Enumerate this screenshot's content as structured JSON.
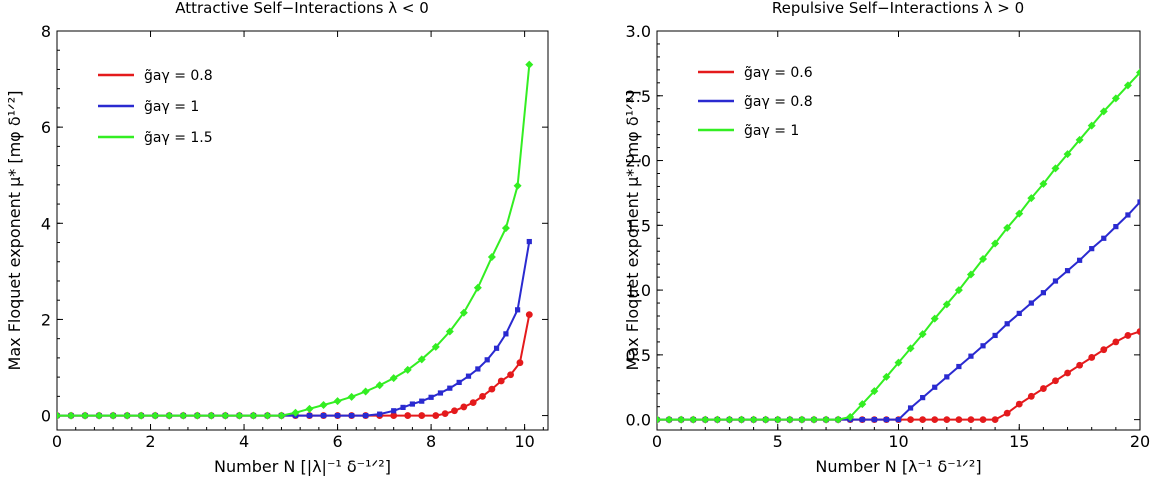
{
  "chart_data": [
    {
      "type": "line",
      "title": "Attractive Self−Interactions  λ < 0",
      "xlabel": "Number  N [|λ|⁻¹ δ⁻¹ᐟ²]",
      "ylabel": "Max Floquet exponent  μ* [mφ δ¹ᐟ²]",
      "xlim": [
        0,
        10.5
      ],
      "ylim": [
        -0.3,
        8
      ],
      "xticks": [
        "0",
        "2",
        "4",
        "6",
        "8",
        "10"
      ],
      "yticks": [
        "0",
        "2",
        "4",
        "6",
        "8"
      ],
      "xtick_values": [
        0,
        2,
        4,
        6,
        8,
        10
      ],
      "ytick_values": [
        0,
        2,
        4,
        6,
        8
      ],
      "legend_position": "top-left",
      "series": [
        {
          "name": "g̃aγ = 0.8",
          "color": "#e41a1c",
          "marker": "circle",
          "x": [
            0,
            0.3,
            0.6,
            0.9,
            1.2,
            1.5,
            1.8,
            2.1,
            2.4,
            2.7,
            3,
            3.3,
            3.6,
            3.9,
            4.2,
            4.5,
            4.8,
            5.1,
            5.4,
            5.7,
            6,
            6.3,
            6.6,
            6.9,
            7.2,
            7.5,
            7.8,
            8.1,
            8.3,
            8.5,
            8.7,
            8.9,
            9.1,
            9.3,
            9.5,
            9.7,
            9.9,
            10.1
          ],
          "values": [
            0,
            0,
            0,
            0,
            0,
            0,
            0,
            0,
            0,
            0,
            0,
            0,
            0,
            0,
            0,
            0,
            0,
            0,
            0,
            0,
            0,
            0,
            0,
            0,
            0,
            0,
            0,
            0,
            0.04,
            0.1,
            0.18,
            0.27,
            0.4,
            0.55,
            0.72,
            0.85,
            1.1,
            2.1
          ]
        },
        {
          "name": "g̃aγ = 1",
          "color": "#2a2ad0",
          "marker": "square",
          "x": [
            0,
            0.3,
            0.6,
            0.9,
            1.2,
            1.5,
            1.8,
            2.1,
            2.4,
            2.7,
            3,
            3.3,
            3.6,
            3.9,
            4.2,
            4.5,
            4.8,
            5.1,
            5.4,
            5.7,
            6,
            6.3,
            6.6,
            6.9,
            7.2,
            7.4,
            7.6,
            7.8,
            8,
            8.2,
            8.4,
            8.6,
            8.8,
            9,
            9.2,
            9.4,
            9.6,
            9.85,
            10.1
          ],
          "values": [
            0,
            0,
            0,
            0,
            0,
            0,
            0,
            0,
            0,
            0,
            0,
            0,
            0,
            0,
            0,
            0,
            0,
            0,
            0,
            0,
            0,
            0,
            0,
            0.03,
            0.1,
            0.17,
            0.24,
            0.3,
            0.38,
            0.47,
            0.57,
            0.69,
            0.82,
            0.97,
            1.16,
            1.4,
            1.7,
            2.2,
            3.62
          ]
        },
        {
          "name": "g̃aγ = 1.5",
          "color": "#33ee22",
          "marker": "diamond",
          "x": [
            0,
            0.3,
            0.6,
            0.9,
            1.2,
            1.5,
            1.8,
            2.1,
            2.4,
            2.7,
            3,
            3.3,
            3.6,
            3.9,
            4.2,
            4.5,
            4.8,
            5.1,
            5.4,
            5.7,
            6,
            6.3,
            6.6,
            6.9,
            7.2,
            7.5,
            7.8,
            8.1,
            8.4,
            8.7,
            9,
            9.3,
            9.6,
            9.85,
            10.1
          ],
          "values": [
            0,
            0,
            0,
            0,
            0,
            0,
            0,
            0,
            0,
            0,
            0,
            0,
            0,
            0,
            0,
            0,
            0,
            0.06,
            0.14,
            0.22,
            0.3,
            0.39,
            0.5,
            0.63,
            0.78,
            0.95,
            1.17,
            1.43,
            1.75,
            2.14,
            2.66,
            3.3,
            3.9,
            4.78,
            7.3
          ]
        }
      ]
    },
    {
      "type": "line",
      "title": "Repulsive Self−Interactions  λ > 0",
      "xlabel": "Number  N [λ⁻¹ δ⁻¹ᐟ²]",
      "ylabel": "Max Floquet exponent  μ* [mφ δ¹ᐟ²]",
      "xlim": [
        0,
        20
      ],
      "ylim": [
        -0.08,
        3.0
      ],
      "xticks": [
        "0",
        "5",
        "10",
        "15",
        "20"
      ],
      "yticks": [
        "0.0",
        "0.5",
        "1.0",
        "1.5",
        "2.0",
        "2.5",
        "3.0"
      ],
      "xtick_values": [
        0,
        5,
        10,
        15,
        20
      ],
      "ytick_values": [
        0,
        0.5,
        1.0,
        1.5,
        2.0,
        2.5,
        3.0
      ],
      "legend_position": "top-left",
      "series": [
        {
          "name": "g̃aγ = 0.6",
          "color": "#e41a1c",
          "marker": "circle",
          "x": [
            0,
            0.5,
            1,
            1.5,
            2,
            2.5,
            3,
            3.5,
            4,
            4.5,
            5,
            5.5,
            6,
            6.5,
            7,
            7.5,
            8,
            8.5,
            9,
            9.5,
            10,
            10.5,
            11,
            11.5,
            12,
            12.5,
            13,
            13.5,
            14,
            14.5,
            15,
            15.5,
            16,
            16.5,
            17,
            17.5,
            18,
            18.5,
            19,
            19.5,
            20
          ],
          "values": [
            0,
            0,
            0,
            0,
            0,
            0,
            0,
            0,
            0,
            0,
            0,
            0,
            0,
            0,
            0,
            0,
            0,
            0,
            0,
            0,
            0,
            0,
            0,
            0,
            0,
            0,
            0,
            0,
            0,
            0.05,
            0.12,
            0.18,
            0.24,
            0.3,
            0.36,
            0.42,
            0.48,
            0.54,
            0.6,
            0.65,
            0.68
          ]
        },
        {
          "name": "g̃aγ = 0.8",
          "color": "#2a2ad0",
          "marker": "square",
          "x": [
            0,
            0.5,
            1,
            1.5,
            2,
            2.5,
            3,
            3.5,
            4,
            4.5,
            5,
            5.5,
            6,
            6.5,
            7,
            7.5,
            8,
            8.5,
            9,
            9.5,
            10,
            10.5,
            11,
            11.5,
            12,
            12.5,
            13,
            13.5,
            14,
            14.5,
            15,
            15.5,
            16,
            16.5,
            17,
            17.5,
            18,
            18.5,
            19,
            19.5,
            20
          ],
          "values": [
            0,
            0,
            0,
            0,
            0,
            0,
            0,
            0,
            0,
            0,
            0,
            0,
            0,
            0,
            0,
            0,
            0,
            0,
            0,
            0,
            0,
            0.09,
            0.17,
            0.25,
            0.33,
            0.41,
            0.49,
            0.57,
            0.65,
            0.74,
            0.82,
            0.9,
            0.98,
            1.07,
            1.15,
            1.23,
            1.32,
            1.4,
            1.49,
            1.58,
            1.68
          ]
        },
        {
          "name": "g̃aγ = 1",
          "color": "#33ee22",
          "marker": "diamond",
          "x": [
            0,
            0.5,
            1,
            1.5,
            2,
            2.5,
            3,
            3.5,
            4,
            4.5,
            5,
            5.5,
            6,
            6.5,
            7,
            7.5,
            8,
            8.5,
            9,
            9.5,
            10,
            10.5,
            11,
            11.5,
            12,
            12.5,
            13,
            13.5,
            14,
            14.5,
            15,
            15.5,
            16,
            16.5,
            17,
            17.5,
            18,
            18.5,
            19,
            19.5,
            20
          ],
          "values": [
            0,
            0,
            0,
            0,
            0,
            0,
            0,
            0,
            0,
            0,
            0,
            0,
            0,
            0,
            0,
            0,
            0.02,
            0.12,
            0.22,
            0.33,
            0.44,
            0.55,
            0.66,
            0.78,
            0.89,
            1.0,
            1.12,
            1.24,
            1.36,
            1.48,
            1.59,
            1.71,
            1.82,
            1.94,
            2.05,
            2.16,
            2.27,
            2.38,
            2.48,
            2.58,
            2.68
          ]
        }
      ]
    }
  ]
}
